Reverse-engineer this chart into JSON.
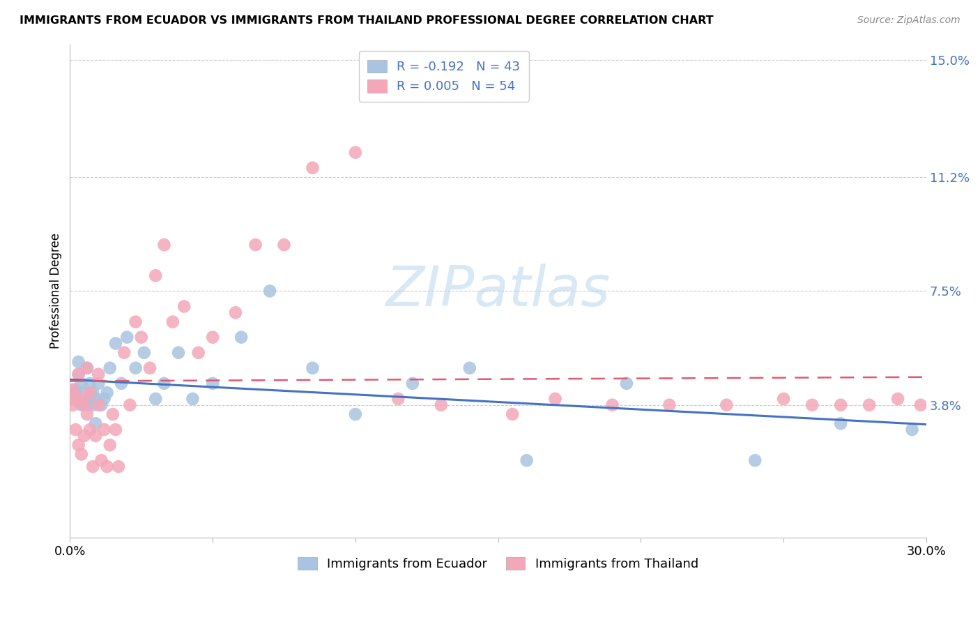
{
  "title": "IMMIGRANTS FROM ECUADOR VS IMMIGRANTS FROM THAILAND PROFESSIONAL DEGREE CORRELATION CHART",
  "source": "Source: ZipAtlas.com",
  "ylabel": "Professional Degree",
  "xlim": [
    0.0,
    0.3
  ],
  "ylim": [
    -0.005,
    0.155
  ],
  "yticks": [
    0.038,
    0.075,
    0.112,
    0.15
  ],
  "ytick_labels": [
    "3.8%",
    "7.5%",
    "11.2%",
    "15.0%"
  ],
  "xticks": [
    0.0,
    0.05,
    0.1,
    0.15,
    0.2,
    0.25,
    0.3
  ],
  "xtick_labels": [
    "0.0%",
    "",
    "",
    "",
    "",
    "",
    "30.0%"
  ],
  "ecuador_color": "#a8c4e0",
  "thailand_color": "#f4a7b9",
  "ecuador_line_color": "#4472c4",
  "thailand_line_color": "#e05a6e",
  "legend_ecuador_label": "R = -0.192   N = 43",
  "legend_thailand_label": "R = 0.005   N = 54",
  "watermark": "ZIPatlas",
  "watermark_color": "#d8e8f5",
  "ecuador_x": [
    0.001,
    0.002,
    0.002,
    0.003,
    0.003,
    0.004,
    0.004,
    0.005,
    0.005,
    0.006,
    0.006,
    0.007,
    0.007,
    0.008,
    0.008,
    0.009,
    0.009,
    0.01,
    0.011,
    0.012,
    0.013,
    0.014,
    0.016,
    0.018,
    0.02,
    0.023,
    0.026,
    0.03,
    0.033,
    0.038,
    0.043,
    0.05,
    0.06,
    0.07,
    0.085,
    0.1,
    0.12,
    0.14,
    0.16,
    0.195,
    0.24,
    0.27,
    0.295
  ],
  "ecuador_y": [
    0.04,
    0.042,
    0.043,
    0.048,
    0.052,
    0.038,
    0.045,
    0.042,
    0.038,
    0.05,
    0.038,
    0.04,
    0.045,
    0.042,
    0.038,
    0.04,
    0.032,
    0.045,
    0.038,
    0.04,
    0.042,
    0.05,
    0.058,
    0.045,
    0.06,
    0.05,
    0.055,
    0.04,
    0.045,
    0.055,
    0.04,
    0.045,
    0.06,
    0.075,
    0.05,
    0.035,
    0.045,
    0.05,
    0.02,
    0.045,
    0.02,
    0.032,
    0.03
  ],
  "thailand_x": [
    0.001,
    0.001,
    0.002,
    0.002,
    0.003,
    0.003,
    0.004,
    0.004,
    0.005,
    0.005,
    0.006,
    0.006,
    0.007,
    0.007,
    0.008,
    0.009,
    0.01,
    0.01,
    0.011,
    0.012,
    0.013,
    0.014,
    0.015,
    0.016,
    0.017,
    0.019,
    0.021,
    0.023,
    0.025,
    0.028,
    0.03,
    0.033,
    0.036,
    0.04,
    0.045,
    0.05,
    0.058,
    0.065,
    0.075,
    0.085,
    0.1,
    0.115,
    0.13,
    0.155,
    0.17,
    0.19,
    0.21,
    0.23,
    0.25,
    0.26,
    0.27,
    0.28,
    0.29,
    0.298
  ],
  "thailand_y": [
    0.038,
    0.043,
    0.03,
    0.04,
    0.025,
    0.048,
    0.022,
    0.04,
    0.038,
    0.028,
    0.035,
    0.05,
    0.042,
    0.03,
    0.018,
    0.028,
    0.048,
    0.038,
    0.02,
    0.03,
    0.018,
    0.025,
    0.035,
    0.03,
    0.018,
    0.055,
    0.038,
    0.065,
    0.06,
    0.05,
    0.08,
    0.09,
    0.065,
    0.07,
    0.055,
    0.06,
    0.068,
    0.09,
    0.09,
    0.115,
    0.12,
    0.04,
    0.038,
    0.035,
    0.04,
    0.038,
    0.038,
    0.038,
    0.04,
    0.038,
    0.038,
    0.038,
    0.04,
    0.038
  ]
}
